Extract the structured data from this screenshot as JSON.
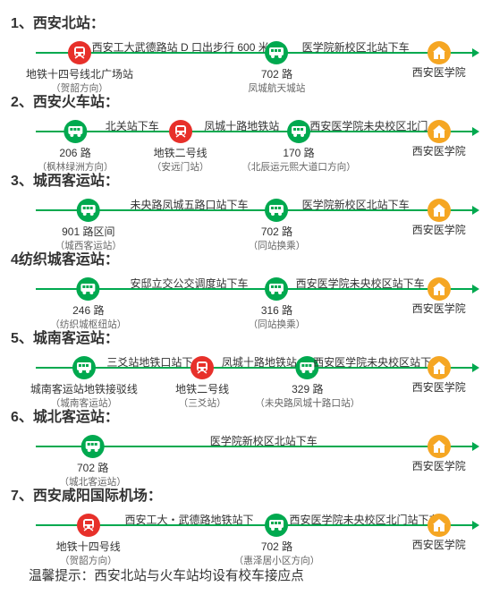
{
  "colors": {
    "line": "#00a94f",
    "metro": "#e7302a",
    "bus": "#00a94f",
    "dest": "#f5a623",
    "text": "#333333",
    "sub": "#666666"
  },
  "fonts": {
    "title_pt": 12,
    "label_pt": 9,
    "sub_pt": 8,
    "dest_pt": 9,
    "footer_pt": 11
  },
  "lane_width": 490,
  "footer": "温馨提示：西安北站与火车站均设有校车接应点",
  "dest_label": "西安医学院",
  "routes": [
    {
      "num": "1、",
      "title": "西安北站：",
      "stops": [
        {
          "type": "metro",
          "x": 0.1,
          "above": "",
          "b1": "地铁十四号线北广场站",
          "b2": "（贺韶方向）"
        },
        {
          "type": "text",
          "x": 0.33,
          "text": "西安工大武德路站 D 口出步行 600 米"
        },
        {
          "type": "bus",
          "x": 0.55,
          "above": "",
          "b1": "702 路",
          "b2": "凤城航天城站"
        },
        {
          "type": "text",
          "x": 0.73,
          "text": "医学院新校区北站下车"
        },
        {
          "type": "dest",
          "x": 0.92
        }
      ]
    },
    {
      "num": "2、",
      "title": "西安火车站：",
      "stops": [
        {
          "type": "bus",
          "x": 0.09,
          "above": "",
          "b1": "206 路",
          "b2": "（枫林绿洲方向）"
        },
        {
          "type": "text",
          "x": 0.22,
          "text": "北关站下车"
        },
        {
          "type": "metro",
          "x": 0.33,
          "above": "",
          "b1": "地铁二号线",
          "b2": "（安远门站）"
        },
        {
          "type": "text",
          "x": 0.47,
          "text": "凤城十路地铁站"
        },
        {
          "type": "bus",
          "x": 0.6,
          "above": "",
          "b1": "170 路",
          "b2": "（北辰运元熙大道口方向）"
        },
        {
          "type": "text",
          "x": 0.76,
          "text": "西安医学院未央校区北门"
        },
        {
          "type": "dest",
          "x": 0.92
        }
      ]
    },
    {
      "num": "3、",
      "title": "城西客运站：",
      "stops": [
        {
          "type": "bus",
          "x": 0.12,
          "above": "",
          "b1": "901 路区间",
          "b2": "（城西客运站）"
        },
        {
          "type": "text",
          "x": 0.35,
          "text": "未央路凤城五路口站下车"
        },
        {
          "type": "bus",
          "x": 0.55,
          "above": "",
          "b1": "702 路",
          "b2": "（同站换乘）"
        },
        {
          "type": "text",
          "x": 0.73,
          "text": "医学院新校区北站下车"
        },
        {
          "type": "dest",
          "x": 0.92
        }
      ]
    },
    {
      "num": "4",
      "title": "纺织城客运站：",
      "stops": [
        {
          "type": "bus",
          "x": 0.12,
          "above": "",
          "b1": "246 路",
          "b2": "（纺织城枢纽站）"
        },
        {
          "type": "text",
          "x": 0.35,
          "text": "安邸立交公交调度站下车"
        },
        {
          "type": "bus",
          "x": 0.55,
          "above": "",
          "b1": "316 路",
          "b2": "（同站换乘）"
        },
        {
          "type": "text",
          "x": 0.74,
          "text": "西安医学院未央校区站下车"
        },
        {
          "type": "dest",
          "x": 0.92
        }
      ]
    },
    {
      "num": "5、",
      "title": "城南客运站：",
      "stops": [
        {
          "type": "bus",
          "x": 0.11,
          "above": "",
          "b1": "城南客运站地铁接驳线",
          "b2": "（城南客运站）"
        },
        {
          "type": "text",
          "x": 0.26,
          "text": "三爻站地铁口站下"
        },
        {
          "type": "metro",
          "x": 0.38,
          "above": "",
          "b1": "地铁二号线",
          "b2": "（三爻站）"
        },
        {
          "type": "text",
          "x": 0.51,
          "text": "凤城十路地铁站"
        },
        {
          "type": "bus",
          "x": 0.62,
          "above": "",
          "b1": "329 路",
          "b2": "（未央路凤城十路口站）"
        },
        {
          "type": "text",
          "x": 0.78,
          "text": "西安医学院未央校区站下车"
        },
        {
          "type": "dest",
          "x": 0.92
        }
      ]
    },
    {
      "num": "6、",
      "title": "城北客运站：",
      "stops": [
        {
          "type": "bus",
          "x": 0.13,
          "above": "",
          "b1": "702 路",
          "b2": "（城北客运站）"
        },
        {
          "type": "text",
          "x": 0.52,
          "text": "医学院新校区北站下车"
        },
        {
          "type": "dest",
          "x": 0.92
        }
      ]
    },
    {
      "num": "7、",
      "title": "西安咸阳国际机场：",
      "stops": [
        {
          "type": "metro",
          "x": 0.12,
          "above": "",
          "b1": "地铁十四号线",
          "b2": "（贺韶方向）"
        },
        {
          "type": "text",
          "x": 0.35,
          "text": "西安工大・武德路地铁站下"
        },
        {
          "type": "bus",
          "x": 0.55,
          "above": "",
          "b1": "702 路",
          "b2": "（惠泽居小区方向）"
        },
        {
          "type": "text",
          "x": 0.75,
          "text": "西安医学院未央校区北门站下车"
        },
        {
          "type": "dest",
          "x": 0.92
        }
      ]
    }
  ]
}
